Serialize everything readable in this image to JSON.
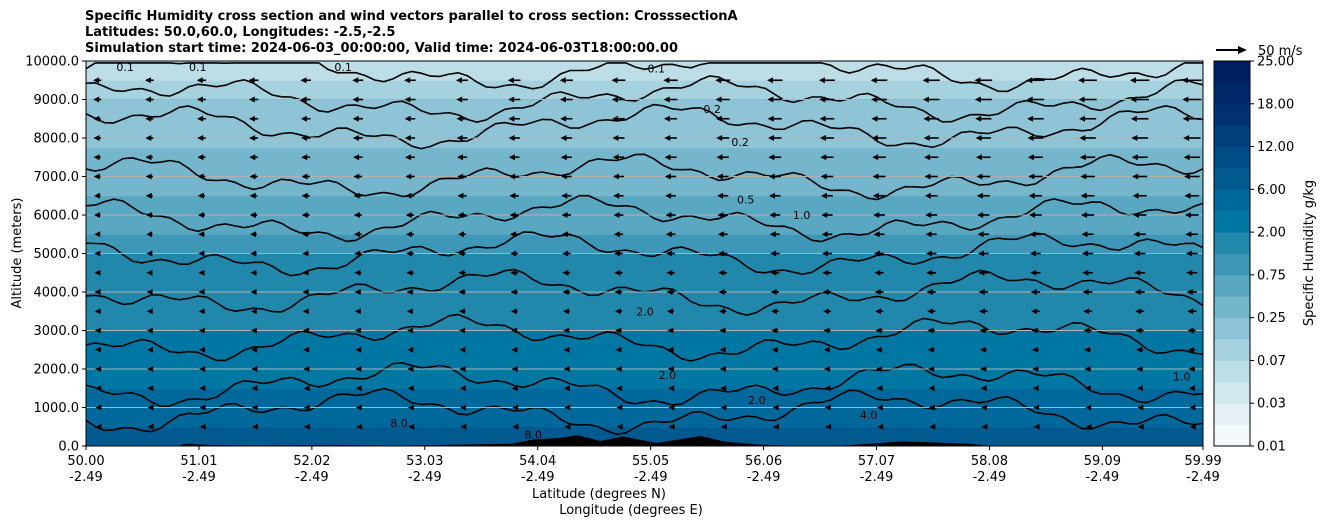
{
  "title": {
    "line1": "Specific Humidity cross section and wind vectors parallel to cross section: CrosssectionA",
    "line2": "Latitudes: 50.0,60.0, Longitudes: -2.5,-2.5",
    "line3": "Simulation start time: 2024-06-03_00:00:00, Valid time: 2024-06-03T18:00:00.00"
  },
  "chart_data": {
    "type": "heatmap",
    "xlabel": "Latitude (degrees N)",
    "xlabel2": "Longitude (degrees E)",
    "ylabel": "Altitude (meters)",
    "xlim": [
      50.0,
      59.99
    ],
    "ylim": [
      0,
      10000
    ],
    "grid": "horizontal",
    "x_ticks": [
      {
        "lat": "50.00",
        "lon": "-2.49",
        "v": 50.0
      },
      {
        "lat": "51.01",
        "lon": "-2.49",
        "v": 51.01
      },
      {
        "lat": "52.02",
        "lon": "-2.49",
        "v": 52.02
      },
      {
        "lat": "53.03",
        "lon": "-2.49",
        "v": 53.03
      },
      {
        "lat": "54.04",
        "lon": "-2.49",
        "v": 54.04
      },
      {
        "lat": "55.05",
        "lon": "-2.49",
        "v": 55.05
      },
      {
        "lat": "56.06",
        "lon": "-2.49",
        "v": 56.06
      },
      {
        "lat": "57.07",
        "lon": "-2.49",
        "v": 57.07
      },
      {
        "lat": "58.08",
        "lon": "-2.49",
        "v": 58.08
      },
      {
        "lat": "59.09",
        "lon": "-2.49",
        "v": 59.09
      },
      {
        "lat": "59.99",
        "lon": "-2.49",
        "v": 59.99
      }
    ],
    "y_ticks": [
      {
        "label": "0.0",
        "v": 0
      },
      {
        "label": "1000.0",
        "v": 1000
      },
      {
        "label": "2000.0",
        "v": 2000
      },
      {
        "label": "3000.0",
        "v": 3000
      },
      {
        "label": "4000.0",
        "v": 4000
      },
      {
        "label": "5000.0",
        "v": 5000
      },
      {
        "label": "6000.0",
        "v": 6000
      },
      {
        "label": "7000.0",
        "v": 7000
      },
      {
        "label": "8000.0",
        "v": 8000
      },
      {
        "label": "9000.0",
        "v": 9000
      },
      {
        "label": "10000.0",
        "v": 10000
      }
    ],
    "colorbar": {
      "label": "Specific Humidity g/kg",
      "levels": [
        0.01,
        0.02,
        0.03,
        0.05,
        0.07,
        0.1,
        0.25,
        0.5,
        0.75,
        1.0,
        2.0,
        4.0,
        6.0,
        9.0,
        12.0,
        15.0,
        18.0,
        21.0,
        25.0
      ],
      "tick_labels": [
        "0.01",
        "0.03",
        "0.07",
        "0.25",
        "0.75",
        "2.00",
        "6.00",
        "12.00",
        "18.00",
        "25.00"
      ],
      "colors": [
        "#f4f9fb",
        "#e4f0f4",
        "#d2e7ee",
        "#bddde7",
        "#a6d1df",
        "#8ec4d6",
        "#75b6cc",
        "#5aa7c2",
        "#3e97b7",
        "#2188ac",
        "#0077a3",
        "#00689a",
        "#005a90",
        "#004c86",
        "#003f7c",
        "#003273",
        "#002869",
        "#001f60"
      ]
    },
    "contour_labels": [
      "0.1",
      "0.2",
      "0.5",
      "1.0",
      "2.0",
      "4.0",
      "8.0"
    ],
    "wind_reference": {
      "label": "50 m/s",
      "speed": 50
    },
    "wind_direction": "toward lower latitude (left)",
    "humidity_profile": [
      {
        "alt": 0,
        "value": 8.0
      },
      {
        "alt": 1000,
        "value": 5.0
      },
      {
        "alt": 2000,
        "value": 3.0
      },
      {
        "alt": 3000,
        "value": 2.0
      },
      {
        "alt": 4000,
        "value": 1.5
      },
      {
        "alt": 5000,
        "value": 1.0
      },
      {
        "alt": 6000,
        "value": 0.6
      },
      {
        "alt": 7000,
        "value": 0.4
      },
      {
        "alt": 8000,
        "value": 0.2
      },
      {
        "alt": 9000,
        "value": 0.1
      },
      {
        "alt": 10000,
        "value": 0.05
      }
    ]
  }
}
